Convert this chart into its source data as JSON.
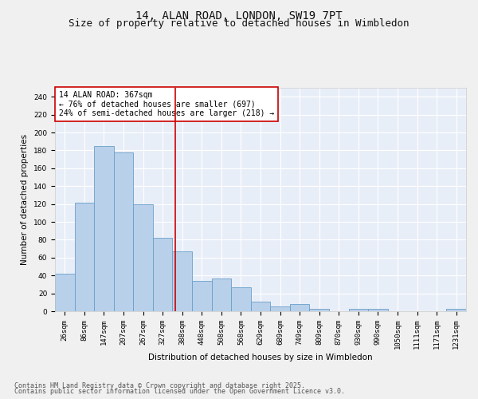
{
  "title_line1": "14, ALAN ROAD, LONDON, SW19 7PT",
  "title_line2": "Size of property relative to detached houses in Wimbledon",
  "xlabel": "Distribution of detached houses by size in Wimbledon",
  "ylabel": "Number of detached properties",
  "bar_color": "#b8d0ea",
  "bar_edge_color": "#6a9fc8",
  "background_color": "#e8eef8",
  "grid_color": "#ffffff",
  "annotation_text": "14 ALAN ROAD: 367sqm\n← 76% of detached houses are smaller (697)\n24% of semi-detached houses are larger (218) →",
  "annotation_box_color": "#ffffff",
  "annotation_border_color": "#cc0000",
  "vline_color": "#cc0000",
  "categories": [
    "26sqm",
    "86sqm",
    "147sqm",
    "207sqm",
    "267sqm",
    "327sqm",
    "388sqm",
    "448sqm",
    "508sqm",
    "568sqm",
    "629sqm",
    "689sqm",
    "749sqm",
    "809sqm",
    "870sqm",
    "930sqm",
    "990sqm",
    "1050sqm",
    "1111sqm",
    "1171sqm",
    "1231sqm"
  ],
  "values": [
    42,
    121,
    185,
    178,
    120,
    82,
    67,
    34,
    37,
    27,
    11,
    5,
    8,
    3,
    0,
    3,
    3,
    0,
    0,
    0,
    3
  ],
  "ylim": [
    0,
    250
  ],
  "yticks": [
    0,
    20,
    40,
    60,
    80,
    100,
    120,
    140,
    160,
    180,
    200,
    220,
    240
  ],
  "footer_line1": "Contains HM Land Registry data © Crown copyright and database right 2025.",
  "footer_line2": "Contains public sector information licensed under the Open Government Licence v3.0.",
  "title_fontsize": 10,
  "subtitle_fontsize": 9,
  "axis_label_fontsize": 7.5,
  "tick_fontsize": 6.5,
  "annotation_fontsize": 7,
  "footer_fontsize": 6
}
